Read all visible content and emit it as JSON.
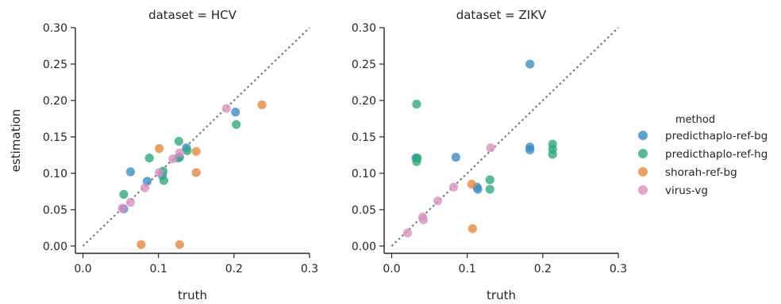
{
  "chart_data": {
    "type": "scatter",
    "shared": {
      "xlabel": "truth",
      "ylabel": "estimation",
      "xlim": [
        -0.01,
        0.3
      ],
      "ylim": [
        -0.01,
        0.3
      ],
      "xticks": [
        "0.0",
        "0.1",
        "0.2",
        "0.3"
      ],
      "yticks": [
        "0.00",
        "0.05",
        "0.10",
        "0.15",
        "0.20",
        "0.25",
        "0.30"
      ],
      "reference_line": "y = x, dotted grey",
      "grid": false,
      "legend": {
        "title": "method",
        "placement": "right",
        "entries": [
          {
            "name": "predicthaplo-ref-bg",
            "color": "#3a8bbe"
          },
          {
            "name": "predicthaplo-ref-hg",
            "color": "#2ea77e"
          },
          {
            "name": "shorah-ref-bg",
            "color": "#e08840"
          },
          {
            "name": "virus-vg",
            "color": "#d88fc0"
          }
        ]
      }
    },
    "panels": [
      {
        "title": "dataset = HCV",
        "series": [
          {
            "name": "predicthaplo-ref-bg",
            "points": [
              [
                0.063,
                0.102
              ],
              [
                0.085,
                0.089
              ],
              [
                0.054,
                0.051
              ],
              [
                0.105,
                0.097
              ],
              [
                0.128,
                0.122
              ],
              [
                0.137,
                0.135
              ],
              [
                0.202,
                0.184
              ]
            ]
          },
          {
            "name": "predicthaplo-ref-hg",
            "points": [
              [
                0.054,
                0.071
              ],
              [
                0.088,
                0.121
              ],
              [
                0.107,
                0.09
              ],
              [
                0.106,
                0.103
              ],
              [
                0.127,
                0.144
              ],
              [
                0.126,
                0.121
              ],
              [
                0.138,
                0.131
              ],
              [
                0.203,
                0.167
              ]
            ]
          },
          {
            "name": "shorah-ref-bg",
            "points": [
              [
                0.077,
                0.002
              ],
              [
                0.101,
                0.134
              ],
              [
                0.128,
                0.002
              ],
              [
                0.15,
                0.101
              ],
              [
                0.15,
                0.13
              ],
              [
                0.237,
                0.194
              ]
            ]
          },
          {
            "name": "virus-vg",
            "points": [
              [
                0.052,
                0.052
              ],
              [
                0.063,
                0.06
              ],
              [
                0.082,
                0.08
              ],
              [
                0.101,
                0.101
              ],
              [
                0.119,
                0.12
              ],
              [
                0.128,
                0.128
              ],
              [
                0.19,
                0.189
              ]
            ]
          }
        ]
      },
      {
        "title": "dataset = ZIKV",
        "series": [
          {
            "name": "predicthaplo-ref-bg",
            "points": [
              [
                0.032,
                0.121
              ],
              [
                0.085,
                0.122
              ],
              [
                0.113,
                0.081
              ],
              [
                0.114,
                0.078
              ],
              [
                0.183,
                0.136
              ],
              [
                0.183,
                0.132
              ],
              [
                0.183,
                0.25
              ]
            ]
          },
          {
            "name": "predicthaplo-ref-hg",
            "points": [
              [
                0.033,
                0.195
              ],
              [
                0.034,
                0.121
              ],
              [
                0.033,
                0.116
              ],
              [
                0.13,
                0.091
              ],
              [
                0.13,
                0.078
              ],
              [
                0.213,
                0.14
              ],
              [
                0.213,
                0.133
              ],
              [
                0.213,
                0.126
              ]
            ]
          },
          {
            "name": "shorah-ref-bg",
            "points": [
              [
                0.106,
                0.085
              ],
              [
                0.107,
                0.024
              ]
            ]
          },
          {
            "name": "virus-vg",
            "points": [
              [
                0.021,
                0.018
              ],
              [
                0.041,
                0.04
              ],
              [
                0.042,
                0.036
              ],
              [
                0.061,
                0.062
              ],
              [
                0.082,
                0.081
              ],
              [
                0.131,
                0.135
              ]
            ]
          }
        ]
      }
    ]
  }
}
